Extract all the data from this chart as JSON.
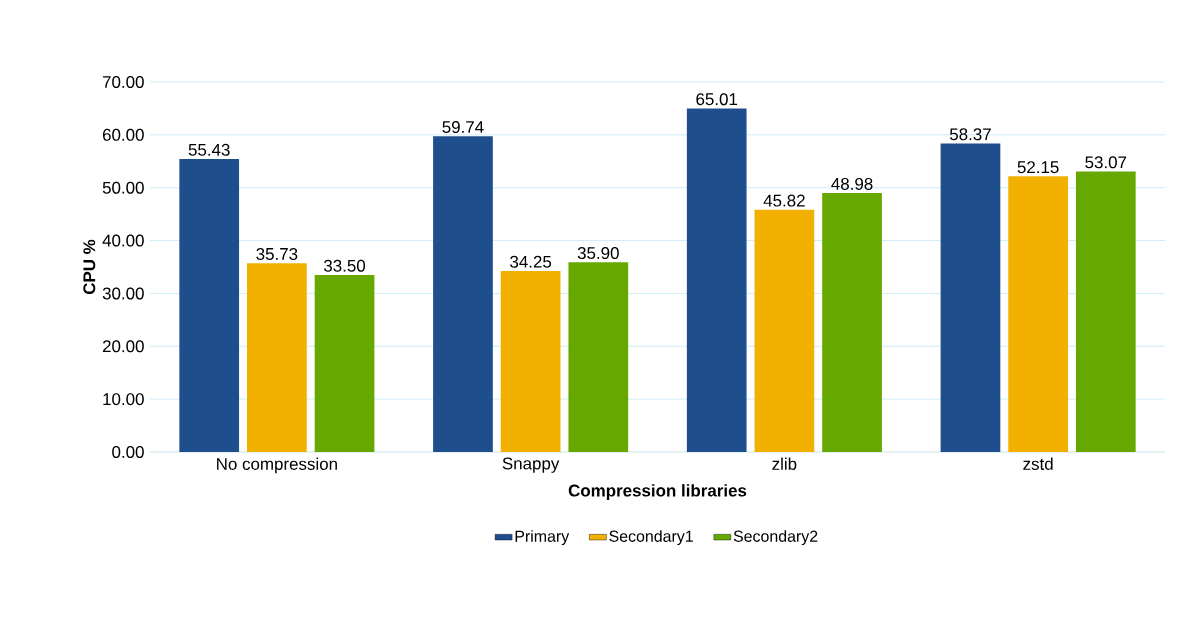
{
  "chart_data": {
    "type": "bar",
    "xlabel": "Compression libraries",
    "ylabel": "CPU %",
    "categories": [
      "No compression",
      "Snappy",
      "zlib",
      "zstd"
    ],
    "series": [
      {
        "name": "Primary",
        "color": "#1f4e8c",
        "values": [
          55.43,
          59.74,
          65.01,
          58.37
        ],
        "value_labels": [
          "55.43",
          "59.74",
          "65.01",
          "58.37"
        ]
      },
      {
        "name": "Secondary1",
        "color": "#f2b000",
        "values": [
          35.73,
          34.25,
          45.82,
          52.15
        ],
        "value_labels": [
          "35.73",
          "34.25",
          "45.82",
          "52.15"
        ]
      },
      {
        "name": "Secondary2",
        "color": "#66a800",
        "values": [
          33.5,
          35.9,
          48.98,
          53.07
        ],
        "value_labels": [
          "33.50",
          "35.90",
          "48.98",
          "53.07"
        ]
      }
    ],
    "ylim": [
      0,
      70
    ],
    "yticks": [
      {
        "value": 0,
        "label": "0.00"
      },
      {
        "value": 10,
        "label": "10.00"
      },
      {
        "value": 20,
        "label": "20.00"
      },
      {
        "value": 30,
        "label": "30.00"
      },
      {
        "value": 40,
        "label": "40.00"
      },
      {
        "value": 50,
        "label": "50.00"
      },
      {
        "value": 60,
        "label": "60.00"
      },
      {
        "value": 70,
        "label": "70.00"
      }
    ],
    "grid": "y",
    "legend": "bottom"
  }
}
